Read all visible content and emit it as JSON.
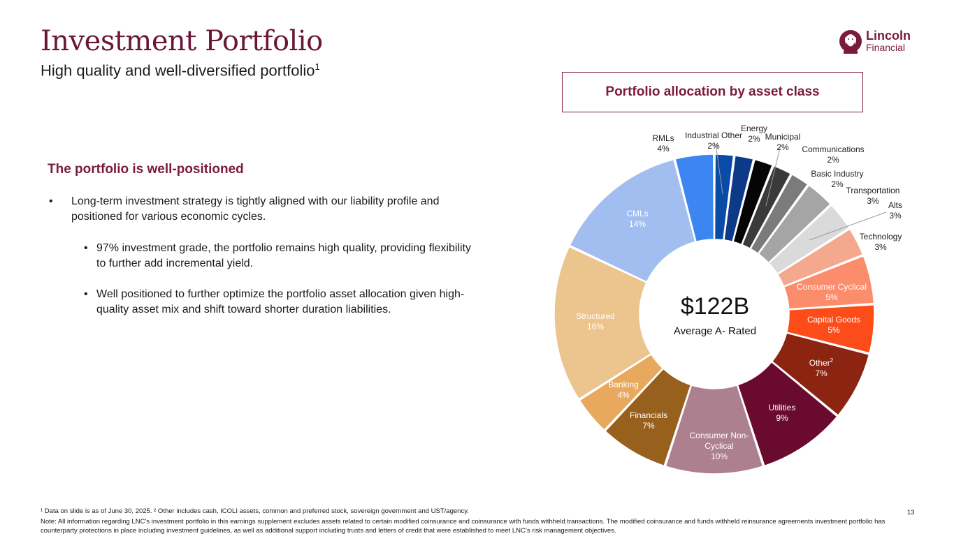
{
  "header": {
    "title": "Investment Portfolio",
    "subtitle": "High quality and well-diversified portfolio",
    "subtitle_sup": "1"
  },
  "logo": {
    "word1": "Lincoln",
    "word2": "Financial",
    "icon": "lincoln-portrait-icon",
    "tm": "SM"
  },
  "left": {
    "heading": "The portfolio is well-positioned",
    "bullets": [
      "Long-term investment strategy is tightly aligned with our liability profile and positioned for various economic cycles.",
      "97% investment grade, the portfolio remains high quality, providing flexibility to further add incremental yield.",
      "Well positioned to further optimize the portfolio asset allocation given high-quality asset mix and shift toward shorter duration liabilities."
    ]
  },
  "chart_header": "Portfolio allocation by asset class",
  "chart_data": {
    "type": "pie",
    "donut": true,
    "center": {
      "value": "$122B",
      "label": "Average A- Rated"
    },
    "slices": [
      {
        "label": "Industrial Other",
        "value": 2,
        "display": "2%",
        "color": "#0a4ba8",
        "label_color": "#222222"
      },
      {
        "label": "Energy",
        "value": 2,
        "display": "2%",
        "color": "#0d3a86",
        "label_color": "#222222"
      },
      {
        "label": "Municipal",
        "value": 2,
        "display": "2%",
        "color": "#050505",
        "label_color": "#222222"
      },
      {
        "label": "Communications",
        "value": 2,
        "display": "2%",
        "color": "#3a3a3a",
        "label_color": "#222222"
      },
      {
        "label": "Basic Industry",
        "value": 2,
        "display": "2%",
        "color": "#7b7b7b",
        "label_color": "#222222"
      },
      {
        "label": "Transportation",
        "value": 3,
        "display": "3%",
        "color": "#a5a5a5",
        "label_color": "#222222"
      },
      {
        "label": "Alts",
        "value": 3,
        "display": "3%",
        "color": "#dadada",
        "label_color": "#222222"
      },
      {
        "label": "Technology",
        "value": 3,
        "display": "3%",
        "color": "#f4a98f",
        "label_color": "#222222"
      },
      {
        "label": "Consumer Cyclical",
        "value": 5,
        "display": "5%",
        "color": "#fb8c6c",
        "label_color": "#ffffff"
      },
      {
        "label": "Capital Goods",
        "value": 5,
        "display": "5%",
        "color": "#fc4c19",
        "label_color": "#ffffff"
      },
      {
        "label": "Other",
        "value": 7,
        "display": "7%",
        "color": "#8b2410",
        "label_color": "#ffffff",
        "sup": "2"
      },
      {
        "label": "Utilities",
        "value": 9,
        "display": "9%",
        "color": "#6a0a2e",
        "label_color": "#ffffff"
      },
      {
        "label": "Consumer Non-Cyclical",
        "value": 10,
        "display": "10%",
        "color": "#ad8090",
        "label_color": "#ffffff"
      },
      {
        "label": "Financials",
        "value": 7,
        "display": "7%",
        "color": "#97601c",
        "label_color": "#ffffff"
      },
      {
        "label": "Banking",
        "value": 4,
        "display": "4%",
        "color": "#e8a95e",
        "label_color": "#ffffff"
      },
      {
        "label": "Structured",
        "value": 16,
        "display": "16%",
        "color": "#ecc48e",
        "label_color": "#ffffff"
      },
      {
        "label": "CMLs",
        "value": 14,
        "display": "14%",
        "color": "#a2bdf0",
        "label_color": "#ffffff"
      },
      {
        "label": "RMLs",
        "value": 4,
        "display": "4%",
        "color": "#3b86f0",
        "label_color": "#222222"
      }
    ]
  },
  "footnote": "¹ Data on slide is as of June 30, 2025. ² Other includes cash, ICOLI assets, common and preferred stock, sovereign government and UST/agency.",
  "note": "Note: All information regarding LNC’s investment portfolio in this earnings supplement excludes assets related to certain modified coinsurance and coinsurance with funds withheld transactions. The modified coinsurance and funds withheld reinsurance agreements investment portfolio has counterparty protections in place including investment guidelines, as well as additional support including trusts and letters of credit that were established to meet LNC’s risk management objectives.",
  "page_number": "13"
}
